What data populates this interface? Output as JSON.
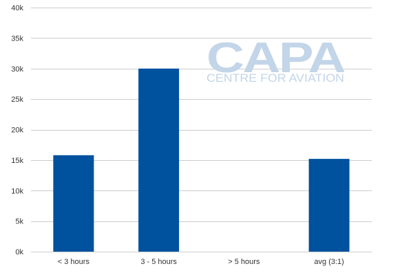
{
  "chart_data": {
    "type": "bar",
    "categories": [
      "< 3 hours",
      "3 - 5 hours",
      "> 5 hours",
      "avg (3:1)"
    ],
    "values": [
      15800,
      30000,
      0,
      15200
    ],
    "ylim": [
      0,
      40000
    ],
    "yticks": [
      0,
      5000,
      10000,
      15000,
      20000,
      25000,
      30000,
      35000,
      40000
    ],
    "ytick_labels": [
      "0k",
      "5k",
      "10k",
      "15k",
      "20k",
      "25k",
      "30k",
      "35k",
      "40k"
    ],
    "title": "",
    "xlabel": "",
    "ylabel": "",
    "grid": true,
    "bar_color": "#00519e",
    "grid_color": "#cccccc"
  },
  "watermark": {
    "logo": "CAPA",
    "tagline": "CENTRE FOR AVIATION",
    "color": "#c3d5e8"
  }
}
